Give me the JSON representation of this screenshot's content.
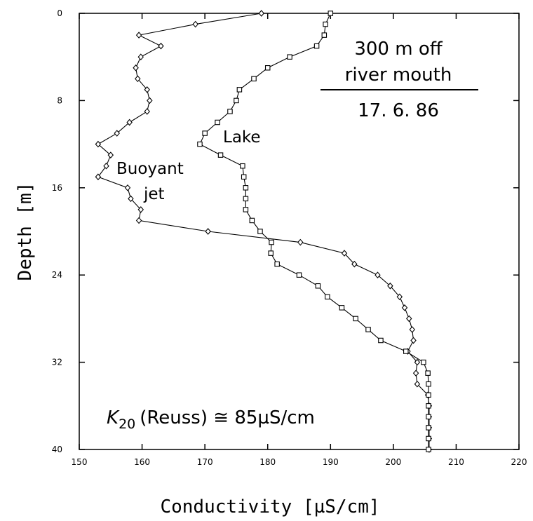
{
  "chart_data": {
    "type": "line",
    "title_lines": [
      "300 m off",
      "river mouth"
    ],
    "date": "17. 6. 86",
    "xlabel": "Conductivity [µS/cm]",
    "ylabel": "Depth [m]",
    "xlim": [
      150,
      220
    ],
    "ylim": [
      0,
      40
    ],
    "y_inverted": true,
    "x_ticks": [
      "150",
      "160",
      "170",
      "180",
      "190",
      "200",
      "210",
      "220"
    ],
    "y_ticks": [
      "0",
      "8",
      "16",
      "24",
      "32",
      "40"
    ],
    "grid": false,
    "legend": "none",
    "series": [
      {
        "name": "Buoyant jet",
        "label_lines": [
          "Buoyant",
          "jet"
        ],
        "marker": "diamond",
        "points": [
          [
            179,
            0
          ],
          [
            168.5,
            1
          ],
          [
            159.5,
            2
          ],
          [
            163,
            3
          ],
          [
            159.8,
            4
          ],
          [
            159,
            5
          ],
          [
            159.3,
            6
          ],
          [
            160.8,
            7
          ],
          [
            161.2,
            8
          ],
          [
            160.8,
            9
          ],
          [
            158,
            10
          ],
          [
            156,
            11
          ],
          [
            153,
            12
          ],
          [
            155,
            13
          ],
          [
            154.3,
            14
          ],
          [
            153,
            15
          ],
          [
            157.7,
            16
          ],
          [
            158.2,
            17
          ],
          [
            159.8,
            18
          ],
          [
            159.5,
            19
          ],
          [
            170.5,
            20
          ],
          [
            185.2,
            21
          ],
          [
            192.2,
            22
          ],
          [
            193.8,
            23
          ],
          [
            197.5,
            24
          ],
          [
            199.5,
            25
          ],
          [
            201,
            26
          ],
          [
            201.8,
            27
          ],
          [
            202.5,
            28
          ],
          [
            203,
            29
          ],
          [
            203.2,
            30
          ],
          [
            202.3,
            31
          ],
          [
            203.8,
            32
          ],
          [
            203.6,
            33
          ],
          [
            203.8,
            34
          ],
          [
            205.5,
            35
          ],
          [
            205.7,
            36
          ],
          [
            205.7,
            37
          ],
          [
            205.7,
            38
          ],
          [
            205.7,
            39
          ],
          [
            205.7,
            40
          ]
        ]
      },
      {
        "name": "Lake",
        "label_lines": [
          "Lake"
        ],
        "marker": "square",
        "points": [
          [
            190,
            0
          ],
          [
            189.2,
            1
          ],
          [
            189,
            2
          ],
          [
            187.8,
            3
          ],
          [
            183.5,
            4
          ],
          [
            180,
            5
          ],
          [
            177.8,
            6
          ],
          [
            175.5,
            7
          ],
          [
            175,
            8
          ],
          [
            174,
            9
          ],
          [
            172,
            10
          ],
          [
            170,
            11
          ],
          [
            169.2,
            12
          ],
          [
            172.5,
            13
          ],
          [
            176,
            14
          ],
          [
            176.2,
            15
          ],
          [
            176.5,
            16
          ],
          [
            176.5,
            17
          ],
          [
            176.5,
            18
          ],
          [
            177.5,
            19
          ],
          [
            178.8,
            20
          ],
          [
            180.6,
            21
          ],
          [
            180.5,
            22
          ],
          [
            181.5,
            23
          ],
          [
            185,
            24
          ],
          [
            188,
            25
          ],
          [
            189.5,
            26
          ],
          [
            191.8,
            27
          ],
          [
            194,
            28
          ],
          [
            196,
            29
          ],
          [
            198,
            30
          ],
          [
            202,
            31
          ],
          [
            204.8,
            32
          ],
          [
            205.5,
            33
          ],
          [
            205.6,
            34
          ],
          [
            205.6,
            35
          ],
          [
            205.6,
            36
          ],
          [
            205.6,
            37
          ],
          [
            205.6,
            38
          ],
          [
            205.6,
            39
          ],
          [
            205.6,
            40
          ]
        ]
      }
    ],
    "annotation": {
      "k_symbol": "K",
      "k_subscript": "20",
      "k_rest": "(Reuss) ≅ 85µS/cm"
    }
  }
}
